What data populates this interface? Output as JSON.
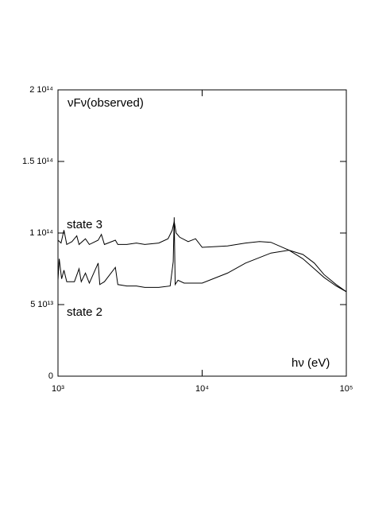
{
  "chart_data": {
    "type": "line",
    "ylabel": "νFν(observed)",
    "xlabel": "hν  (eV)",
    "xscale": "log",
    "xlim": [
      1000,
      100000
    ],
    "xticks": [
      {
        "value": 1000,
        "label": "10³"
      },
      {
        "value": 10000,
        "label": "10⁴"
      },
      {
        "value": 100000,
        "label": "10⁵"
      }
    ],
    "ylim": [
      0,
      200000000000000
    ],
    "yticks": [
      0,
      {
        "value": 50000000000000,
        "label": "5 10¹³"
      },
      {
        "value": 100000000000000,
        "label": "1 10¹⁴"
      },
      {
        "value": 150000000000000,
        "label": "1.5 10¹⁴"
      },
      {
        "value": 200000000000000,
        "label": "2 10¹⁴"
      }
    ],
    "series": [
      {
        "name": "state 3",
        "color": "#000000",
        "x": [
          1000,
          1050,
          1100,
          1150,
          1250,
          1350,
          1400,
          1550,
          1650,
          1900,
          2000,
          2100,
          2500,
          2600,
          3000,
          3500,
          4000,
          5000,
          5800,
          6200,
          6400,
          6600,
          7000,
          8000,
          9000,
          10000,
          15000,
          20000,
          25000,
          30000,
          40000,
          50000,
          60000,
          70000,
          85000,
          100000
        ],
        "values": [
          95000000000000.0,
          93000000000000.0,
          102000000000000.0,
          92000000000000.0,
          94000000000000.0,
          98000000000000.0,
          92000000000000.0,
          96000000000000.0,
          92000000000000.0,
          95000000000000.0,
          99000000000000.0,
          92000000000000.0,
          95000000000000.0,
          92000000000000.0,
          92000000000000.0,
          93000000000000.0,
          92000000000000.0,
          93000000000000.0,
          96000000000000.0,
          102000000000000.0,
          108000000000000.0,
          100000000000000.0,
          97000000000000.0,
          94000000000000.0,
          96000000000000.0,
          90000000000000.0,
          91000000000000.0,
          93000000000000.0,
          94000000000000.0,
          93500000000000.0,
          88000000000000.0,
          82000000000000.0,
          75000000000000.0,
          69000000000000.0,
          63000000000000.0,
          59000000000000.0
        ]
      },
      {
        "name": "state 2",
        "color": "#000000",
        "x": [
          1000,
          1020,
          1060,
          1100,
          1150,
          1300,
          1400,
          1450,
          1550,
          1650,
          1900,
          1950,
          2100,
          2500,
          2600,
          3000,
          3500,
          4000,
          5000,
          6000,
          6300,
          6400,
          6500,
          6800,
          7500,
          10000,
          15000,
          20000,
          30000,
          40000,
          50000,
          60000,
          70000,
          85000,
          100000
        ],
        "values": [
          67000000000000.0,
          82000000000000.0,
          68000000000000.0,
          74000000000000.0,
          66000000000000.0,
          66000000000000.0,
          75000000000000.0,
          66000000000000.0,
          72000000000000.0,
          65000000000000.0,
          79000000000000.0,
          64000000000000.0,
          66000000000000.0,
          76000000000000.0,
          64000000000000.0,
          63000000000000.0,
          63000000000000.0,
          62000000000000.0,
          62000000000000.0,
          63000000000000.0,
          80000000000000.0,
          111000000000000.0,
          64000000000000.0,
          67000000000000.0,
          65000000000000.0,
          65000000000000.0,
          72000000000000.0,
          79000000000000.0,
          86000000000000.0,
          88000000000000.0,
          85000000000000.0,
          79000000000000.0,
          71000000000000.0,
          64000000000000.0,
          59000000000000.0
        ]
      }
    ]
  }
}
